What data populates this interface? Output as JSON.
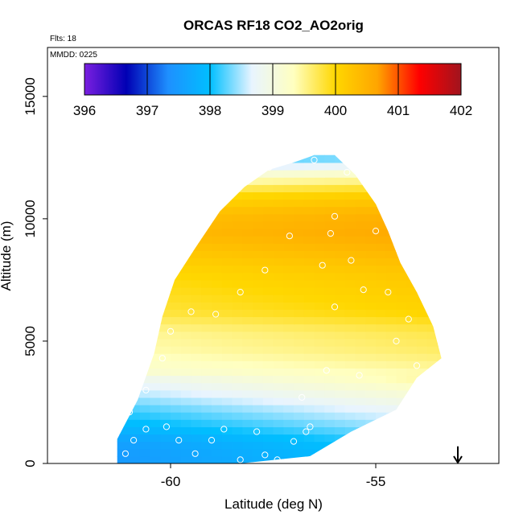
{
  "chart_data": {
    "type": "heatmap",
    "title": "ORCAS RF18 CO2_AO2orig",
    "subtitle_flights": "Flts: 18",
    "subtitle_date": "MMDD: 0225",
    "xlabel": "Latitude (deg N)",
    "ylabel": "Altitude (m)",
    "xlim": [
      -63.0,
      -52.0
    ],
    "ylim": [
      0,
      17000
    ],
    "xticks": [
      {
        "value": -60,
        "label": "-60"
      },
      {
        "value": -55,
        "label": "-55"
      }
    ],
    "yticks": [
      {
        "value": 0,
        "label": "0"
      },
      {
        "value": 5000,
        "label": "5000"
      },
      {
        "value": 10000,
        "label": "10000"
      },
      {
        "value": 15000,
        "label": "15000"
      }
    ],
    "colorbar": {
      "min": 396,
      "max": 402,
      "ticks": [
        {
          "value": 396,
          "label": "396"
        },
        {
          "value": 397,
          "label": "397"
        },
        {
          "value": 398,
          "label": "398"
        },
        {
          "value": 399,
          "label": "399"
        },
        {
          "value": 400,
          "label": "400"
        },
        {
          "value": 401,
          "label": "401"
        },
        {
          "value": 402,
          "label": "402"
        }
      ],
      "colors": [
        "#7b1fe0",
        "#0000b4",
        "#1e90ff",
        "#00bfff",
        "#e8f4ff",
        "#ffffc0",
        "#ffd700",
        "#ffa500",
        "#ff0000",
        "#a0141e"
      ]
    },
    "coverage_outline": [
      [
        -61.3,
        0
      ],
      [
        -58.3,
        0
      ],
      [
        -56.6,
        300
      ],
      [
        -55.6,
        1300
      ],
      [
        -54.5,
        2200
      ],
      [
        -54.0,
        3500
      ],
      [
        -53.4,
        4300
      ],
      [
        -53.6,
        5600
      ],
      [
        -54.0,
        7000
      ],
      [
        -54.4,
        8200
      ],
      [
        -54.7,
        9500
      ],
      [
        -55.0,
        10600
      ],
      [
        -55.5,
        11800
      ],
      [
        -56.0,
        12600
      ],
      [
        -56.5,
        12600
      ],
      [
        -57.0,
        12300
      ],
      [
        -57.6,
        12000
      ],
      [
        -58.2,
        11300
      ],
      [
        -58.8,
        10300
      ],
      [
        -59.4,
        8800
      ],
      [
        -59.9,
        7500
      ],
      [
        -60.2,
        6000
      ],
      [
        -60.4,
        4500
      ],
      [
        -60.8,
        2600
      ],
      [
        -61.3,
        1000
      ],
      [
        -61.3,
        0
      ]
    ],
    "field_bands": [
      {
        "altitude": 300,
        "value": 397.8
      },
      {
        "altitude": 900,
        "value": 397.9
      },
      {
        "altitude": 1500,
        "value": 398.2
      },
      {
        "altitude": 2200,
        "value": 398.5
      },
      {
        "altitude": 3000,
        "value": 398.9
      },
      {
        "altitude": 3800,
        "value": 399.3
      },
      {
        "altitude": 4600,
        "value": 399.5
      },
      {
        "altitude": 5400,
        "value": 399.6
      },
      {
        "altitude": 6200,
        "value": 399.9
      },
      {
        "altitude": 7000,
        "value": 400.0
      },
      {
        "altitude": 7800,
        "value": 400.1
      },
      {
        "altitude": 8600,
        "value": 400.3
      },
      {
        "altitude": 9400,
        "value": 400.5
      },
      {
        "altitude": 10200,
        "value": 400.4
      },
      {
        "altitude": 11000,
        "value": 400.0
      },
      {
        "altitude": 11800,
        "value": 399.2
      },
      {
        "altitude": 12400,
        "value": 398.3
      }
    ],
    "observations": [
      {
        "lat": -61.1,
        "alt": 400
      },
      {
        "lat": -60.9,
        "alt": 950
      },
      {
        "lat": -60.6,
        "alt": 1400
      },
      {
        "lat": -60.1,
        "alt": 1500
      },
      {
        "lat": -59.8,
        "alt": 950
      },
      {
        "lat": -59.4,
        "alt": 400
      },
      {
        "lat": -59.0,
        "alt": 950
      },
      {
        "lat": -58.7,
        "alt": 1400
      },
      {
        "lat": -58.3,
        "alt": 150
      },
      {
        "lat": -57.9,
        "alt": 1300
      },
      {
        "lat": -57.7,
        "alt": 350
      },
      {
        "lat": -57.4,
        "alt": 150
      },
      {
        "lat": -57.0,
        "alt": 900
      },
      {
        "lat": -56.7,
        "alt": 1300
      },
      {
        "lat": -56.2,
        "alt": 400
      },
      {
        "lat": -56.6,
        "alt": 1500
      },
      {
        "lat": -61.0,
        "alt": 2100
      },
      {
        "lat": -60.6,
        "alt": 3000
      },
      {
        "lat": -60.2,
        "alt": 4300
      },
      {
        "lat": -60.0,
        "alt": 5400
      },
      {
        "lat": -59.5,
        "alt": 6200
      },
      {
        "lat": -58.9,
        "alt": 6100
      },
      {
        "lat": -58.3,
        "alt": 7000
      },
      {
        "lat": -57.7,
        "alt": 7900
      },
      {
        "lat": -57.1,
        "alt": 9300
      },
      {
        "lat": -56.3,
        "alt": 8100
      },
      {
        "lat": -56.0,
        "alt": 6400
      },
      {
        "lat": -55.3,
        "alt": 7100
      },
      {
        "lat": -55.6,
        "alt": 8300
      },
      {
        "lat": -56.1,
        "alt": 9400
      },
      {
        "lat": -55.0,
        "alt": 9500
      },
      {
        "lat": -54.7,
        "alt": 7000
      },
      {
        "lat": -54.5,
        "alt": 5000
      },
      {
        "lat": -54.2,
        "alt": 5900
      },
      {
        "lat": -54.0,
        "alt": 4000
      },
      {
        "lat": -55.4,
        "alt": 3600
      },
      {
        "lat": -56.2,
        "alt": 3800
      },
      {
        "lat": -56.8,
        "alt": 2700
      },
      {
        "lat": -57.6,
        "alt": 12100
      },
      {
        "lat": -56.5,
        "alt": 12400
      },
      {
        "lat": -55.7,
        "alt": 11900
      },
      {
        "lat": -56.0,
        "alt": 10100
      }
    ],
    "arrow_marker": {
      "lat": -53.0,
      "alt_top": 700,
      "alt_bottom": 0
    }
  }
}
